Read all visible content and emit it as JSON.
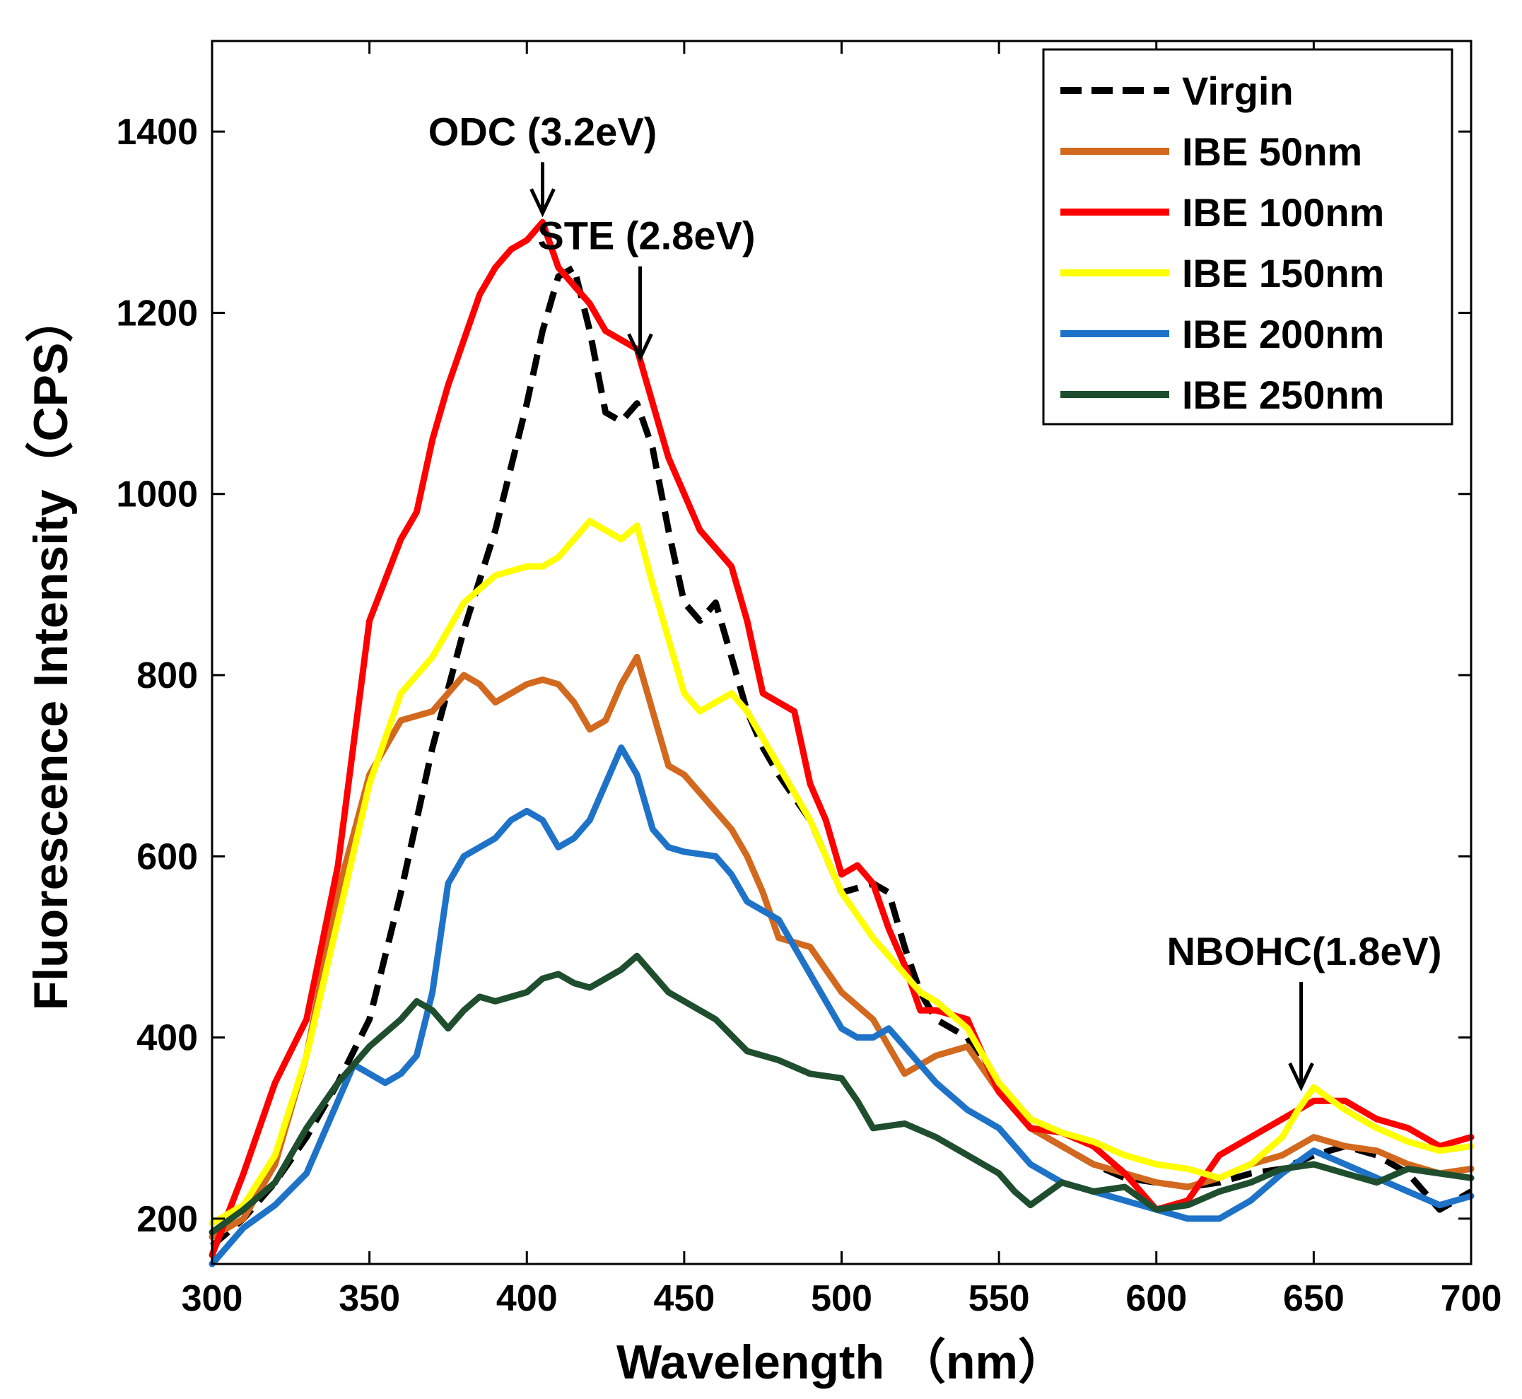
{
  "chart_data": {
    "type": "line",
    "title": "",
    "xlabel": "Wavelength （nm）",
    "ylabel": "Fluorescence Intensity（CPS）",
    "xlim": [
      300,
      700
    ],
    "ylim": [
      150,
      1500
    ],
    "xticks": [
      300,
      350,
      400,
      450,
      500,
      550,
      600,
      650,
      700
    ],
    "yticks": [
      200,
      400,
      600,
      800,
      1000,
      1200,
      1400
    ],
    "grid": false,
    "legend_position": "top-right",
    "series": [
      {
        "name": "Virgin",
        "color": "#000000",
        "dashed": true,
        "x": [
          300,
          310,
          320,
          330,
          340,
          350,
          360,
          370,
          380,
          390,
          400,
          405,
          410,
          415,
          420,
          425,
          430,
          435,
          440,
          445,
          450,
          455,
          460,
          465,
          470,
          475,
          480,
          490,
          500,
          510,
          515,
          520,
          525,
          530,
          540,
          550,
          560,
          570,
          580,
          590,
          600,
          610,
          620,
          630,
          640,
          650,
          660,
          670,
          680,
          690,
          700
        ],
        "y": [
          170,
          200,
          240,
          290,
          350,
          420,
          560,
          720,
          850,
          960,
          1100,
          1180,
          1240,
          1250,
          1180,
          1090,
          1080,
          1100,
          1050,
          960,
          880,
          860,
          880,
          820,
          760,
          720,
          690,
          640,
          560,
          570,
          560,
          500,
          450,
          420,
          400,
          340,
          300,
          280,
          260,
          245,
          240,
          235,
          240,
          250,
          255,
          270,
          280,
          270,
          250,
          210,
          230
        ]
      },
      {
        "name": "IBE 50nm",
        "color": "#d2691e",
        "dashed": false,
        "x": [
          300,
          310,
          320,
          330,
          340,
          350,
          360,
          370,
          375,
          380,
          385,
          390,
          395,
          400,
          405,
          410,
          415,
          420,
          425,
          430,
          435,
          440,
          445,
          450,
          455,
          460,
          465,
          470,
          475,
          480,
          490,
          500,
          510,
          520,
          525,
          530,
          540,
          550,
          560,
          570,
          580,
          590,
          600,
          610,
          620,
          630,
          640,
          650,
          660,
          670,
          680,
          690,
          700
        ],
        "y": [
          180,
          200,
          260,
          380,
          560,
          690,
          750,
          760,
          780,
          800,
          790,
          770,
          780,
          790,
          795,
          790,
          770,
          740,
          750,
          790,
          820,
          760,
          700,
          690,
          670,
          650,
          630,
          600,
          560,
          510,
          500,
          450,
          420,
          360,
          370,
          380,
          390,
          340,
          300,
          280,
          260,
          250,
          240,
          235,
          245,
          260,
          270,
          290,
          280,
          275,
          260,
          250,
          255
        ]
      },
      {
        "name": "IBE 100nm",
        "color": "#ff0000",
        "dashed": false,
        "x": [
          300,
          310,
          320,
          330,
          340,
          350,
          360,
          365,
          370,
          375,
          380,
          385,
          390,
          395,
          400,
          405,
          410,
          415,
          420,
          425,
          430,
          435,
          440,
          445,
          450,
          455,
          460,
          465,
          470,
          475,
          480,
          485,
          490,
          495,
          500,
          505,
          510,
          515,
          520,
          525,
          530,
          540,
          550,
          560,
          570,
          580,
          590,
          600,
          610,
          620,
          630,
          640,
          650,
          660,
          670,
          680,
          690,
          700
        ],
        "y": [
          160,
          250,
          350,
          420,
          590,
          860,
          950,
          980,
          1060,
          1120,
          1170,
          1220,
          1250,
          1270,
          1280,
          1300,
          1250,
          1230,
          1210,
          1180,
          1170,
          1160,
          1100,
          1040,
          1000,
          960,
          940,
          920,
          860,
          780,
          770,
          760,
          680,
          640,
          580,
          590,
          570,
          520,
          480,
          430,
          430,
          420,
          340,
          300,
          295,
          280,
          250,
          210,
          220,
          270,
          290,
          310,
          330,
          330,
          310,
          300,
          280,
          290
        ]
      },
      {
        "name": "IBE 150nm",
        "color": "#ffff00",
        "dashed": false,
        "x": [
          300,
          310,
          320,
          330,
          340,
          350,
          360,
          370,
          380,
          390,
          400,
          405,
          410,
          415,
          420,
          425,
          430,
          435,
          440,
          445,
          450,
          455,
          460,
          465,
          470,
          475,
          480,
          490,
          500,
          510,
          520,
          525,
          530,
          540,
          550,
          560,
          570,
          580,
          590,
          600,
          610,
          620,
          630,
          640,
          645,
          650,
          660,
          670,
          680,
          690,
          700
        ],
        "y": [
          195,
          215,
          270,
          380,
          530,
          680,
          780,
          820,
          880,
          910,
          920,
          920,
          930,
          950,
          970,
          960,
          950,
          965,
          900,
          840,
          780,
          760,
          770,
          780,
          760,
          730,
          700,
          640,
          560,
          510,
          470,
          450,
          440,
          410,
          350,
          310,
          295,
          285,
          270,
          260,
          255,
          245,
          260,
          290,
          320,
          345,
          320,
          300,
          285,
          275,
          280
        ]
      },
      {
        "name": "IBE 200nm",
        "color": "#1e73c8",
        "dashed": false,
        "x": [
          300,
          310,
          320,
          330,
          340,
          345,
          350,
          355,
          360,
          365,
          370,
          375,
          380,
          385,
          390,
          395,
          400,
          405,
          410,
          415,
          420,
          425,
          430,
          435,
          440,
          445,
          450,
          460,
          465,
          470,
          475,
          480,
          490,
          500,
          505,
          510,
          515,
          520,
          530,
          540,
          550,
          560,
          570,
          580,
          590,
          600,
          610,
          620,
          630,
          640,
          650,
          660,
          670,
          680,
          690,
          700
        ],
        "y": [
          150,
          190,
          215,
          250,
          330,
          370,
          360,
          350,
          360,
          380,
          450,
          570,
          600,
          610,
          620,
          640,
          650,
          640,
          610,
          620,
          640,
          680,
          720,
          690,
          630,
          610,
          605,
          600,
          580,
          550,
          540,
          530,
          470,
          410,
          400,
          400,
          410,
          390,
          350,
          320,
          300,
          260,
          240,
          230,
          220,
          210,
          200,
          200,
          220,
          250,
          275,
          260,
          245,
          230,
          215,
          225
        ]
      },
      {
        "name": "IBE 250nm",
        "color": "#1f4e2e",
        "dashed": false,
        "x": [
          300,
          310,
          320,
          330,
          340,
          350,
          360,
          365,
          370,
          375,
          380,
          385,
          390,
          395,
          400,
          405,
          410,
          415,
          420,
          425,
          430,
          435,
          440,
          445,
          450,
          460,
          470,
          480,
          490,
          500,
          505,
          510,
          520,
          530,
          540,
          550,
          555,
          560,
          570,
          580,
          590,
          600,
          610,
          620,
          630,
          640,
          650,
          660,
          670,
          680,
          690,
          700
        ],
        "y": [
          185,
          210,
          240,
          300,
          350,
          390,
          420,
          440,
          430,
          410,
          430,
          445,
          440,
          445,
          450,
          465,
          470,
          460,
          455,
          465,
          475,
          490,
          470,
          450,
          440,
          420,
          385,
          375,
          360,
          355,
          330,
          300,
          305,
          290,
          270,
          250,
          230,
          215,
          240,
          230,
          235,
          210,
          215,
          230,
          240,
          255,
          260,
          250,
          240,
          255,
          250,
          245
        ]
      }
    ],
    "annotations": [
      {
        "text": "ODC (3.2eV)",
        "x": 405,
        "y": 1310,
        "label_x": 405,
        "label_y": 1385
      },
      {
        "text": "STE (2.8eV)",
        "x": 436,
        "y": 1150,
        "label_x": 438,
        "label_y": 1270
      },
      {
        "text": "NBOHC(1.8eV)",
        "x": 646,
        "y": 345,
        "label_x": 647,
        "label_y": 480
      }
    ]
  }
}
